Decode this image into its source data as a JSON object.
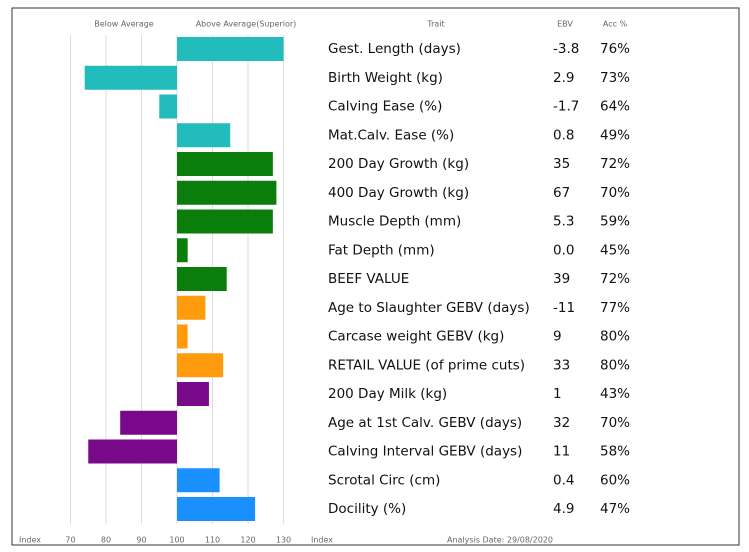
{
  "chart_data": {
    "type": "bar",
    "orientation": "horizontal",
    "left_header": "Below Average",
    "right_header": "Above Average(Superior)",
    "trait_header": "Trait",
    "ebv_header": "EBV",
    "acc_header": "Acc %",
    "x_label": "Index",
    "analysis_date": "Analysis Date: 29/08/2020",
    "categories": [
      "Gest. Length (days)",
      "Birth Weight (kg)",
      "Calving Ease (%)",
      "Mat.Calv. Ease (%)",
      "200 Day Growth (kg)",
      "400 Day Growth (kg)",
      "Muscle Depth (mm)",
      "Fat Depth (mm)",
      "BEEF VALUE",
      "Age to Slaughter GEBV (days)",
      "Carcase weight GEBV (kg)",
      "RETAIL VALUE (of prime cuts)",
      "200 Day Milk (kg)",
      "Age at 1st Calv. GEBV (days)",
      "Calving Interval GEBV (days)",
      "Scrotal Circ (cm)",
      "Docility (%)"
    ],
    "values": [
      130,
      74,
      95,
      115,
      127,
      128,
      127,
      103,
      114,
      108,
      103,
      113,
      109,
      84,
      75,
      112,
      122
    ],
    "colors": [
      "#22bcbc",
      "#22bcbc",
      "#22bcbc",
      "#22bcbc",
      "#0b7d0b",
      "#0b7d0b",
      "#0b7d0b",
      "#0b7d0b",
      "#0b7d0b",
      "#ff9b0c",
      "#ff9b0c",
      "#ff9b0c",
      "#780a8a",
      "#780a8a",
      "#780a8a",
      "#1a90ff",
      "#1a90ff"
    ],
    "ebv": [
      "-3.8",
      "2.9",
      "-1.7",
      "0.8",
      "35",
      "67",
      "5.3",
      "0.0",
      "39",
      "-11",
      "9",
      "33",
      "1",
      "32",
      "11",
      "0.4",
      "4.9"
    ],
    "acc": [
      "76%",
      "73%",
      "64%",
      "49%",
      "72%",
      "70%",
      "59%",
      "45%",
      "72%",
      "77%",
      "80%",
      "80%",
      "43%",
      "70%",
      "58%",
      "60%",
      "47%"
    ],
    "baseline": 100,
    "xlim": [
      60,
      140
    ],
    "xticks": [
      70,
      80,
      90,
      100,
      110,
      120,
      130
    ],
    "grid": true
  }
}
